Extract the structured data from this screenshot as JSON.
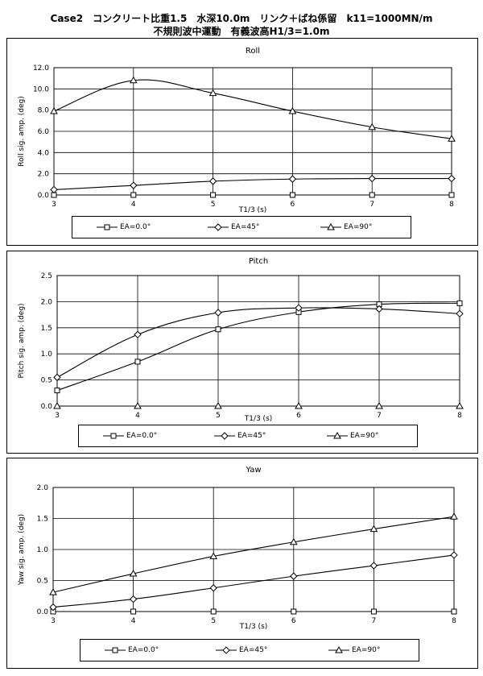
{
  "header": {
    "line1": "Case2　コンクリート比重1.5　水深10.0m　リンク＋ばね係留　k11=1000MN/m",
    "line2": "不規則波中運動　有義波高H1/3=1.0m"
  },
  "legend_labels": [
    "EA=0.0°",
    "EA=45°",
    "EA=90°"
  ],
  "chart_data": [
    {
      "type": "line",
      "title": "Roll",
      "xlabel": "T1/3 (s)",
      "ylabel": "Roll sig. amp. (deg)",
      "xlim": [
        3,
        8
      ],
      "ylim": [
        0,
        12
      ],
      "x_ticks": [
        3,
        4,
        5,
        6,
        7,
        8
      ],
      "y_ticks": [
        "0.0",
        "2.0",
        "4.0",
        "6.0",
        "8.0",
        "10.0",
        "12.0"
      ],
      "x": [
        3,
        4,
        5,
        6,
        7,
        8
      ],
      "series": [
        {
          "name": "EA=0.0°",
          "marker": "square",
          "values": [
            0.0,
            0.0,
            0.0,
            0.0,
            0.0,
            0.0
          ]
        },
        {
          "name": "EA=45°",
          "marker": "diamond",
          "values": [
            0.5,
            0.9,
            1.3,
            1.5,
            1.55,
            1.55
          ]
        },
        {
          "name": "EA=90°",
          "marker": "triangle",
          "values": [
            7.9,
            10.8,
            9.6,
            7.9,
            6.4,
            5.3
          ]
        }
      ]
    },
    {
      "type": "line",
      "title": "Pitch",
      "xlabel": "T1/3 (s)",
      "ylabel": "Pitch sig. amp. (deg)",
      "xlim": [
        3,
        8
      ],
      "ylim": [
        0,
        2.5
      ],
      "x_ticks": [
        3,
        4,
        5,
        6,
        7,
        8
      ],
      "y_ticks": [
        "0.0",
        "0.5",
        "1.0",
        "1.5",
        "2.0",
        "2.5"
      ],
      "x": [
        3,
        4,
        5,
        6,
        7,
        8
      ],
      "series": [
        {
          "name": "EA=0.0°",
          "marker": "square",
          "values": [
            0.3,
            0.85,
            1.47,
            1.8,
            1.95,
            1.97
          ]
        },
        {
          "name": "EA=45°",
          "marker": "diamond",
          "values": [
            0.55,
            1.37,
            1.79,
            1.88,
            1.86,
            1.77
          ]
        },
        {
          "name": "EA=90°",
          "marker": "triangle",
          "values": [
            0.0,
            0.0,
            0.0,
            0.0,
            0.0,
            0.0
          ]
        }
      ]
    },
    {
      "type": "line",
      "title": "Yaw",
      "xlabel": "T1/3 (s)",
      "ylabel": "Yaw sig. amp. (deg)",
      "xlim": [
        3,
        8
      ],
      "ylim": [
        0,
        2.0
      ],
      "x_ticks": [
        3,
        4,
        5,
        6,
        7,
        8
      ],
      "y_ticks": [
        "0.0",
        "0.5",
        "1.0",
        "1.5",
        "2.0"
      ],
      "x": [
        3,
        4,
        5,
        6,
        7,
        8
      ],
      "series": [
        {
          "name": "EA=0.0°",
          "marker": "square",
          "values": [
            0.0,
            0.0,
            0.0,
            0.0,
            0.0,
            0.0
          ]
        },
        {
          "name": "EA=45°",
          "marker": "diamond",
          "values": [
            0.07,
            0.2,
            0.38,
            0.57,
            0.74,
            0.91
          ]
        },
        {
          "name": "EA=90°",
          "marker": "triangle",
          "values": [
            0.31,
            0.61,
            0.89,
            1.12,
            1.33,
            1.53
          ]
        }
      ]
    }
  ]
}
